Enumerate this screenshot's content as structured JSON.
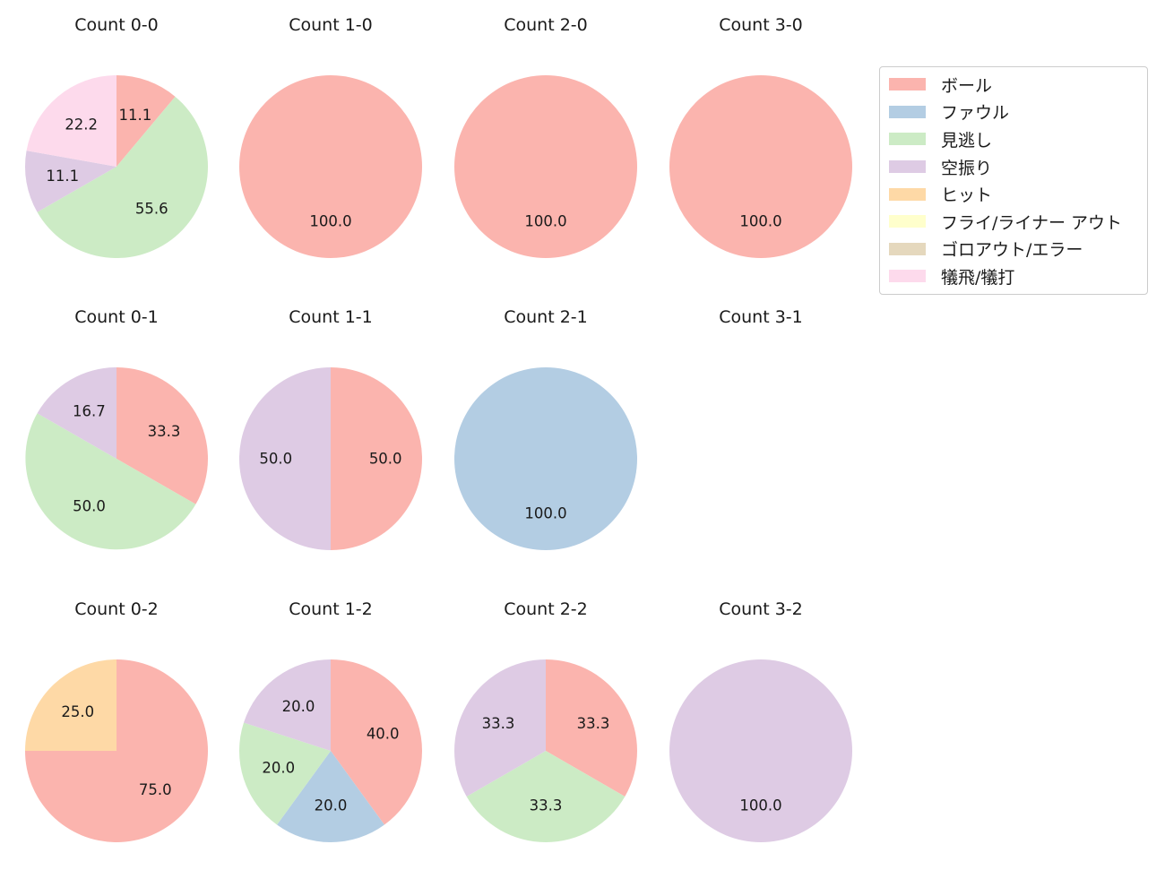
{
  "figure": {
    "background": "#ffffff",
    "text_color": "#1a1a1a"
  },
  "colors": {
    "ボール": "#fbb4ae",
    "ファウル": "#b3cde3",
    "見逃し": "#ccebc5",
    "空振り": "#decbe4",
    "ヒット": "#fed9a6",
    "フライ/ライナー アウト": "#ffffcc",
    "ゴロアウト/エラー": "#e5d8bd",
    "犠飛/犠打": "#fddaec"
  },
  "legend": {
    "position": "top-right",
    "items": [
      {
        "label": "ボール"
      },
      {
        "label": "ファウル"
      },
      {
        "label": "見逃し"
      },
      {
        "label": "空振り"
      },
      {
        "label": "ヒット"
      },
      {
        "label": "フライ/ライナー アウト"
      },
      {
        "label": "ゴロアウト/エラー"
      },
      {
        "label": "犠飛/犠打"
      }
    ]
  },
  "chart_data": [
    {
      "type": "pie",
      "title": "Count 0-0",
      "start_angle": "top",
      "direction": "clockwise",
      "slices": [
        {
          "label": "ボール",
          "value": 11.1,
          "text": "11.1"
        },
        {
          "label": "見逃し",
          "value": 55.6,
          "text": "55.6"
        },
        {
          "label": "空振り",
          "value": 11.1,
          "text": "11.1"
        },
        {
          "label": "犠飛/犠打",
          "value": 22.2,
          "text": "22.2"
        }
      ]
    },
    {
      "type": "pie",
      "title": "Count 1-0",
      "start_angle": "top",
      "direction": "clockwise",
      "slices": [
        {
          "label": "ボール",
          "value": 100.0,
          "text": "100.0"
        }
      ]
    },
    {
      "type": "pie",
      "title": "Count 2-0",
      "start_angle": "top",
      "direction": "clockwise",
      "slices": [
        {
          "label": "ボール",
          "value": 100.0,
          "text": "100.0"
        }
      ]
    },
    {
      "type": "pie",
      "title": "Count 3-0",
      "start_angle": "top",
      "direction": "clockwise",
      "slices": [
        {
          "label": "ボール",
          "value": 100.0,
          "text": "100.0"
        }
      ]
    },
    {
      "type": "pie",
      "title": "Count 0-1",
      "start_angle": "top",
      "direction": "clockwise",
      "slices": [
        {
          "label": "ボール",
          "value": 33.3,
          "text": "33.3"
        },
        {
          "label": "見逃し",
          "value": 50.0,
          "text": "50.0"
        },
        {
          "label": "空振り",
          "value": 16.7,
          "text": "16.7"
        }
      ]
    },
    {
      "type": "pie",
      "title": "Count 1-1",
      "start_angle": "top",
      "direction": "clockwise",
      "slices": [
        {
          "label": "ボール",
          "value": 50.0,
          "text": "50.0"
        },
        {
          "label": "空振り",
          "value": 50.0,
          "text": "50.0"
        }
      ]
    },
    {
      "type": "pie",
      "title": "Count 2-1",
      "start_angle": "top",
      "direction": "clockwise",
      "slices": [
        {
          "label": "ファウル",
          "value": 100.0,
          "text": "100.0"
        }
      ]
    },
    {
      "type": "pie",
      "title": "Count 3-1",
      "start_angle": "top",
      "direction": "clockwise",
      "slices": []
    },
    {
      "type": "pie",
      "title": "Count 0-2",
      "start_angle": "top",
      "direction": "clockwise",
      "slices": [
        {
          "label": "ボール",
          "value": 75.0,
          "text": "75.0"
        },
        {
          "label": "ヒット",
          "value": 25.0,
          "text": "25.0"
        }
      ]
    },
    {
      "type": "pie",
      "title": "Count 1-2",
      "start_angle": "top",
      "direction": "clockwise",
      "slices": [
        {
          "label": "ボール",
          "value": 40.0,
          "text": "40.0"
        },
        {
          "label": "ファウル",
          "value": 20.0,
          "text": "20.0"
        },
        {
          "label": "見逃し",
          "value": 20.0,
          "text": "20.0"
        },
        {
          "label": "空振り",
          "value": 20.0,
          "text": "20.0"
        }
      ]
    },
    {
      "type": "pie",
      "title": "Count 2-2",
      "start_angle": "top",
      "direction": "clockwise",
      "slices": [
        {
          "label": "ボール",
          "value": 33.3,
          "text": "33.3"
        },
        {
          "label": "見逃し",
          "value": 33.3,
          "text": "33.3"
        },
        {
          "label": "空振り",
          "value": 33.3,
          "text": "33.3"
        }
      ]
    },
    {
      "type": "pie",
      "title": "Count 3-2",
      "start_angle": "top",
      "direction": "clockwise",
      "slices": [
        {
          "label": "空振り",
          "value": 100.0,
          "text": "100.0"
        }
      ]
    }
  ]
}
